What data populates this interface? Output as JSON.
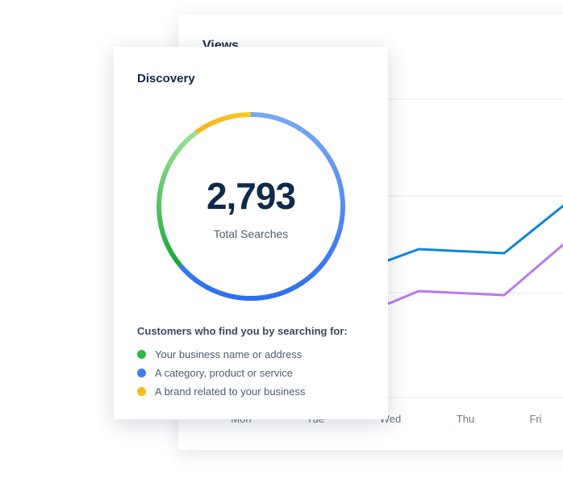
{
  "views": {
    "title": "Views",
    "days": [
      "Mon",
      "Tue",
      "Wed",
      "Thu",
      "Fri"
    ],
    "colors": {
      "series_1": "#0a86e0",
      "series_2": "#b77af0",
      "grid": "#e6e9ee"
    }
  },
  "discovery": {
    "title": "Discovery",
    "total_value": "2,793",
    "total_label": "Total Searches",
    "legend_heading": "Customers who find you by searching for:",
    "legend": [
      {
        "label": "Your business name or address",
        "color": "#2fb84a",
        "fraction": 0.26
      },
      {
        "label": "A category, product or service",
        "color": "#3b7ff0",
        "fraction": 0.64
      },
      {
        "label": "A brand related to your business",
        "color": "#f9b917",
        "fraction": 0.1
      }
    ]
  }
}
